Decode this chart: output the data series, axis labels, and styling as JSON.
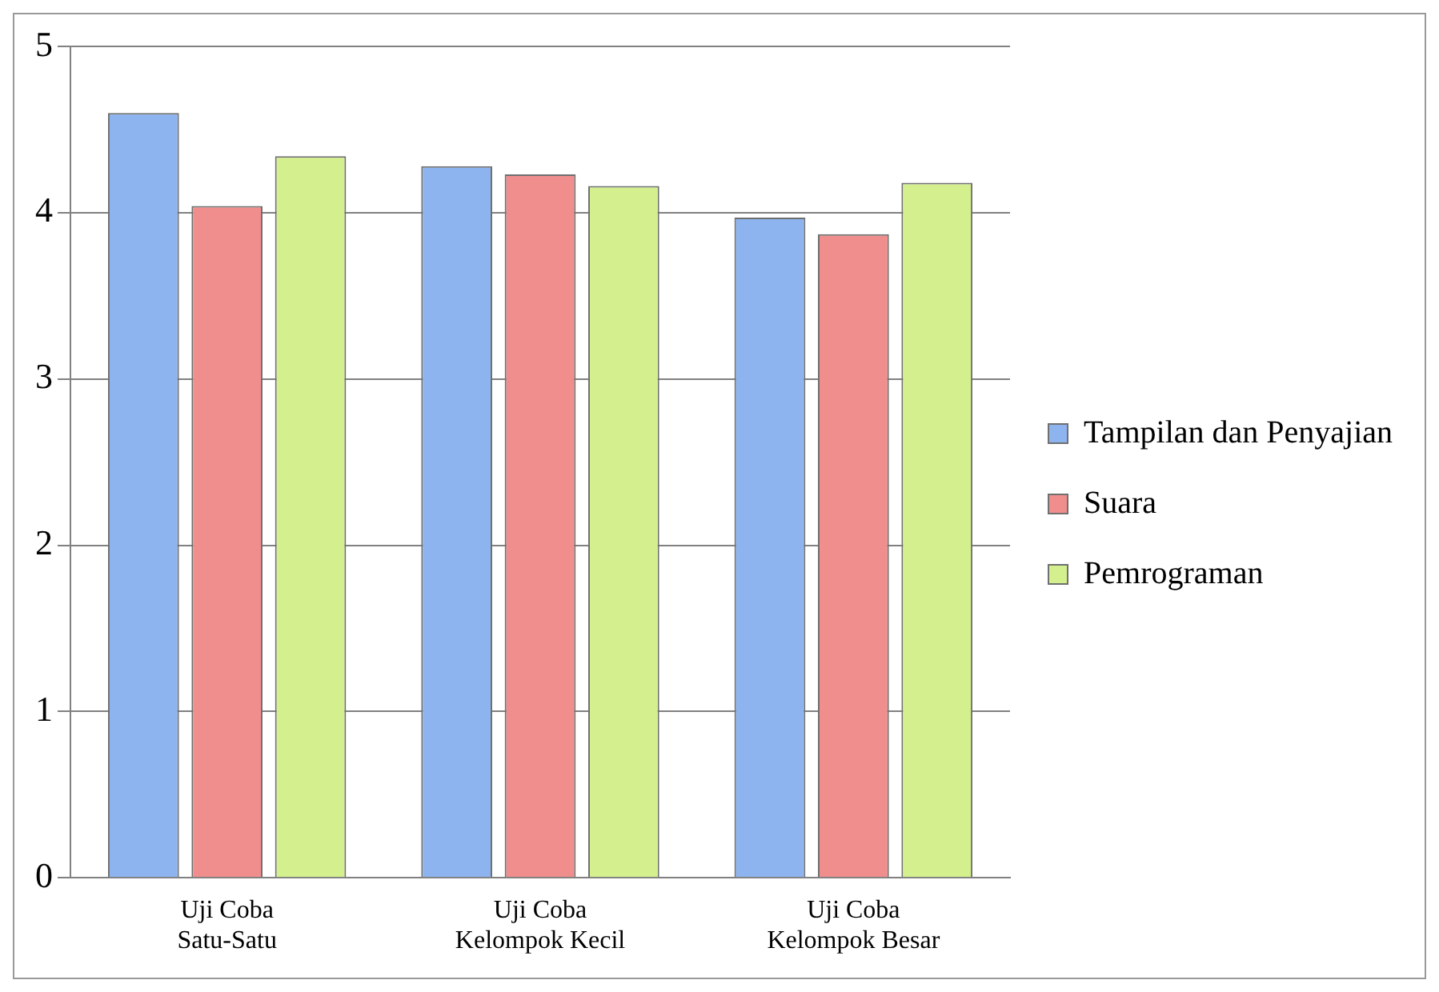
{
  "chart_data": {
    "type": "bar",
    "categories": [
      "Uji Coba\nSatu-Satu",
      "Uji Coba\nKelompok Kecil",
      "Uji Coba\nKelompok Besar"
    ],
    "series": [
      {
        "name": "Tampilan dan Penyajian",
        "color": "#8eb4f0",
        "values": [
          4.6,
          4.28,
          3.97
        ]
      },
      {
        "name": "Suara",
        "color": "#f08e8e",
        "values": [
          4.04,
          4.23,
          3.87
        ]
      },
      {
        "name": "Pemrograman",
        "color": "#d4f08e",
        "values": [
          4.34,
          4.16,
          4.18
        ]
      }
    ],
    "ylim": [
      0,
      5
    ],
    "yticks": [
      0,
      1,
      2,
      3,
      4,
      5
    ],
    "grid": "y",
    "legend": "right"
  }
}
